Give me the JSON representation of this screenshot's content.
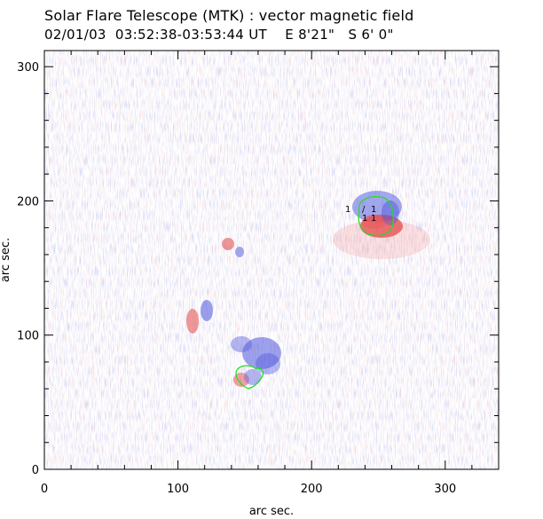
{
  "header": {
    "title": "Solar Flare Telescope (MTK) : vector magnetic field",
    "subtitle": "02/01/03  03:52:38-03:53:44 UT    E 8'21\"   S 6' 0\""
  },
  "plot": {
    "xlabel": "arc sec.",
    "ylabel": "arc sec.",
    "xlim": [
      0,
      340
    ],
    "ylim": [
      0,
      312
    ],
    "x_ticks": [
      {
        "value": 0,
        "label": "0"
      },
      {
        "value": 100,
        "label": "100"
      },
      {
        "value": 200,
        "label": "200"
      },
      {
        "value": 300,
        "label": "300"
      }
    ],
    "y_ticks": [
      {
        "value": 0,
        "label": "0"
      },
      {
        "value": 100,
        "label": "100"
      },
      {
        "value": 200,
        "label": "200"
      },
      {
        "value": 300,
        "label": "300"
      }
    ],
    "colors": {
      "positive": "#e43b3b",
      "negative": "#3b46d8",
      "contour": "#22dd22",
      "frame": "#000000"
    },
    "regions": [
      {
        "name": "active-region-east",
        "x": 245,
        "y": 193
      },
      {
        "name": "active-region-center",
        "x": 150,
        "y": 80
      },
      {
        "name": "patch-west",
        "x": 110,
        "y": 112
      }
    ],
    "vector_marks": [
      "1",
      "/",
      "1",
      "1",
      "1"
    ]
  }
}
